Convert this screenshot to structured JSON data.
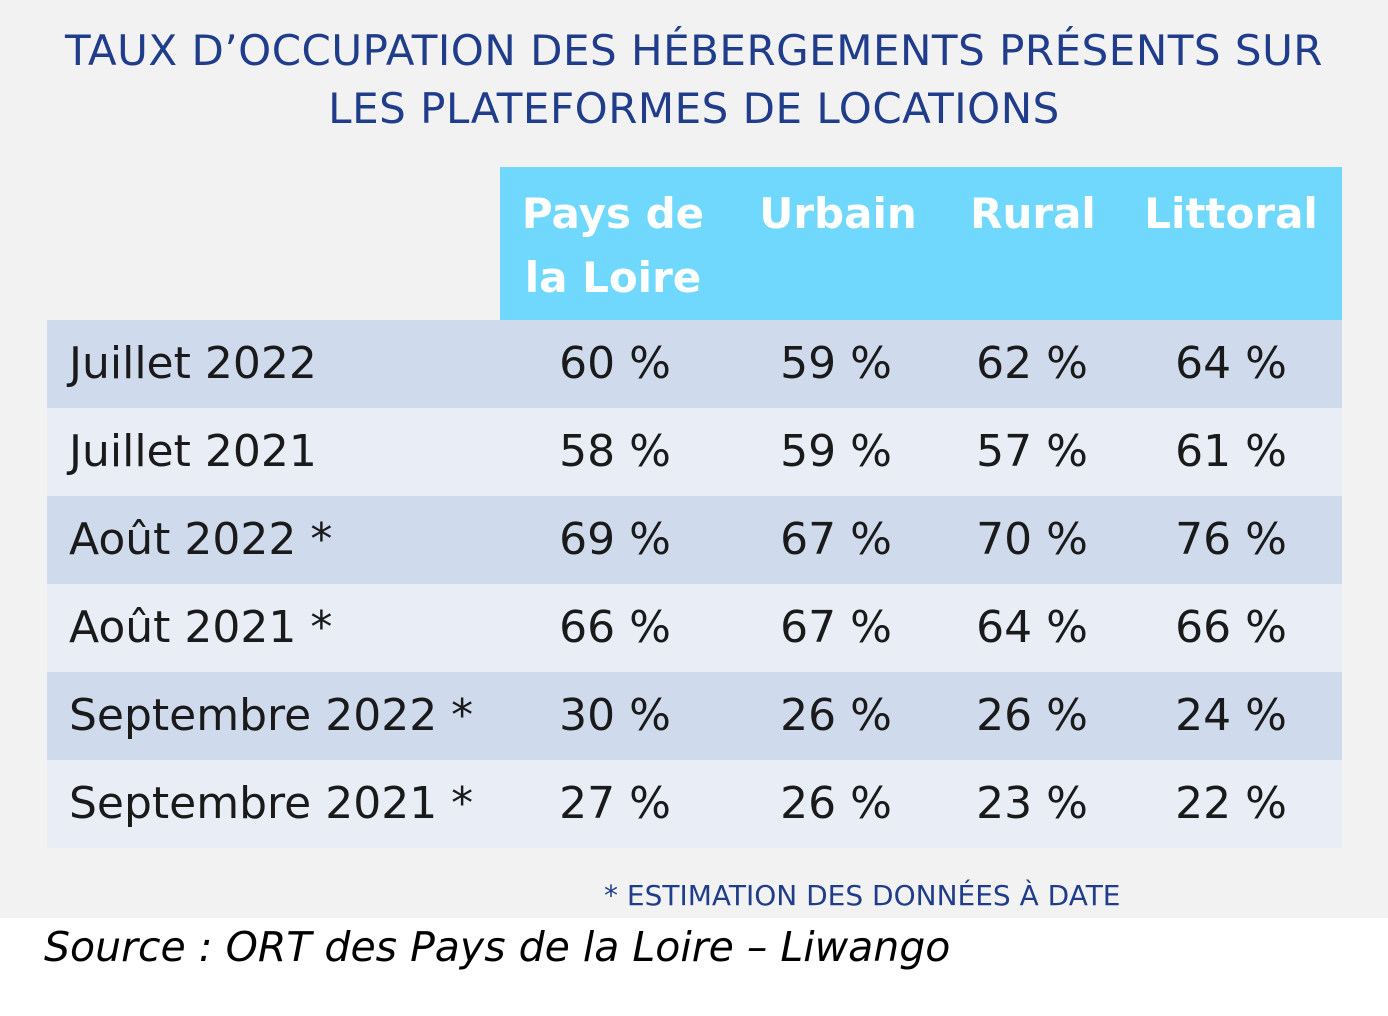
{
  "title": {
    "line1": "TAUX D’OCCUPATION DES HÉBERGEMENTS PRÉSENTS SUR",
    "line2": "LES PLATEFORMES DE LOCATIONS"
  },
  "colors": {
    "header_bg": "#70d8fc",
    "row_dark": "#cfdbed",
    "row_light": "#e8edf6",
    "title_text": "#1f3d8a"
  },
  "chart_data": {
    "type": "table",
    "title": "TAUX D’OCCUPATION DES HÉBERGEMENTS PRÉSENTS SUR LES PLATEFORMES DE LOCATIONS",
    "columns": [
      {
        "line1": "Pays de",
        "line2": "la Loire"
      },
      {
        "line1": "Urbain",
        "line2": ""
      },
      {
        "line1": "Rural",
        "line2": ""
      },
      {
        "line1": "Littoral",
        "line2": ""
      }
    ],
    "rows": [
      {
        "label": "Juillet 2022",
        "values": [
          "60 %",
          "59 %",
          "62 %",
          "64 %"
        ]
      },
      {
        "label": "Juillet 2021",
        "values": [
          "58 %",
          "59 %",
          "57 %",
          "61 %"
        ]
      },
      {
        "label": "Août 2022 *",
        "values": [
          "69 %",
          "67 %",
          "70 %",
          "76 %"
        ]
      },
      {
        "label": "Août 2021 *",
        "values": [
          "66 %",
          "67 %",
          "64 %",
          "66 %"
        ]
      },
      {
        "label": "Septembre 2022 *",
        "values": [
          "30 %",
          "26 %",
          "26 %",
          "24 %"
        ]
      },
      {
        "label": "Septembre 2021 *",
        "values": [
          "27 %",
          "26 %",
          "23 %",
          "22 %"
        ]
      }
    ]
  },
  "footnote": "* ESTIMATION DES DONNÉES À DATE",
  "source": "Source : ORT des Pays de la Loire – Liwango"
}
